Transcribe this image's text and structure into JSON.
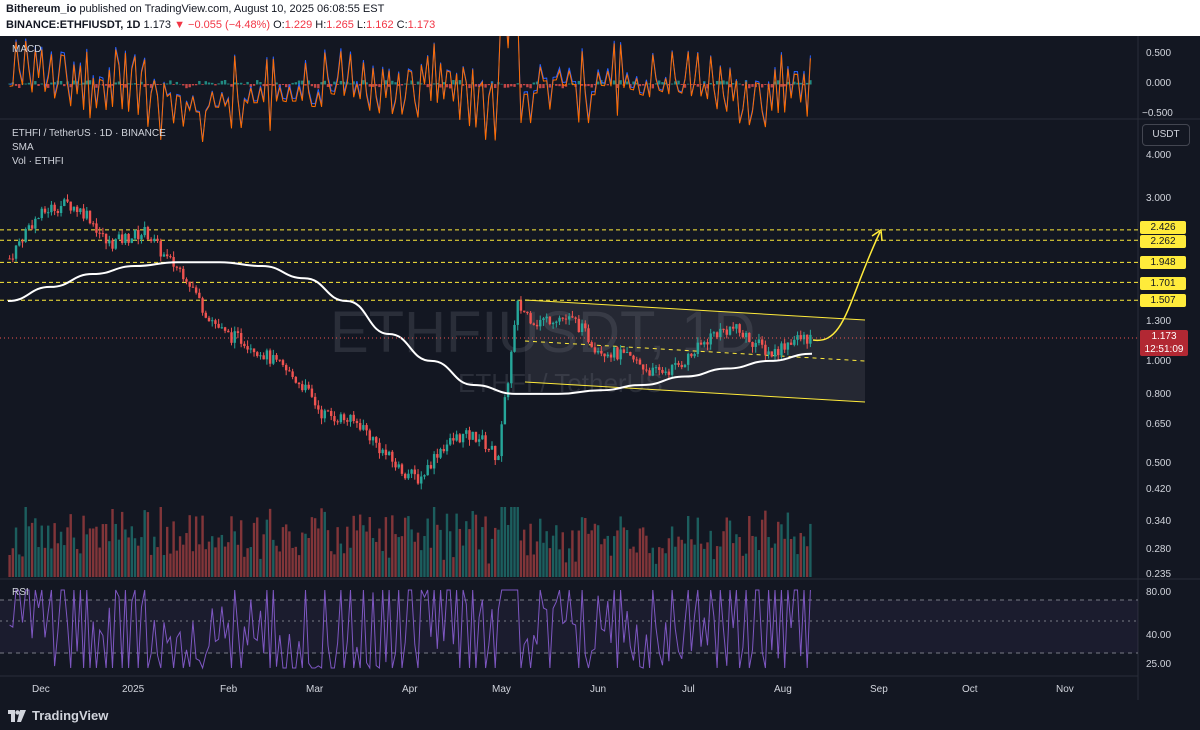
{
  "header": {
    "publisher": "Bithereum_io",
    "published_text": "published on TradingView.com, August 10, 2025 06:08:55 EST",
    "symbol_line": "BINANCE:ETHFIUSDT, 1D",
    "last": "1.173",
    "change": "▼ −0.055 (−4.48%)",
    "o_label": "O:",
    "o": "1.229",
    "h_label": "H:",
    "h": "1.265",
    "l_label": "L:",
    "l": "1.162",
    "c_label": "C:",
    "c": "1.173"
  },
  "panes": {
    "macd_label": "MACD",
    "main_title": "ETHFI / TetherUS · 1D · BINANCE",
    "sma_label": "SMA",
    "vol_label": "Vol · ETHFI",
    "rsi_label": "RSI",
    "watermark_main": "ETHFIUSDT, 1D",
    "watermark_sub": "ETHFI / TetherUS"
  },
  "axis": {
    "currency": "USDT",
    "macd_ticks": [
      "0.500",
      "0.000",
      "−0.500"
    ],
    "price_ticks": [
      "4.000",
      "3.000",
      "1.300",
      "1.000",
      "0.800",
      "0.650",
      "0.500",
      "0.420",
      "0.340",
      "0.280",
      "0.235"
    ],
    "rsi_ticks": [
      "80.00",
      "40.00",
      "25.00"
    ],
    "level_tags": [
      "2.426",
      "2.262",
      "1.948",
      "1.701",
      "1.507"
    ],
    "current_price": "1.173",
    "countdown": "12:51:09"
  },
  "x_axis": {
    "labels": [
      "Dec",
      "2025",
      "Feb",
      "Mar",
      "Apr",
      "May",
      "Jun",
      "Jul",
      "Aug",
      "Sep",
      "Oct",
      "Nov"
    ]
  },
  "footer": {
    "brand": "TradingView"
  },
  "colors": {
    "background": "#131722",
    "up": "#26a69a",
    "down": "#ef5350",
    "levels": "#ffeb3b",
    "sma": "#ffffff",
    "rsi": "#7e57c2",
    "macd": "#2962ff",
    "signal": "#ff6d00"
  },
  "chart_data": {
    "type": "line",
    "title": "ETHFI / TetherUS · 1D · BINANCE",
    "y_scale": "log",
    "ylim": [
      0.235,
      4.0
    ],
    "x_range": [
      "Dec",
      "Nov"
    ],
    "horizontal_levels": [
      2.426,
      2.262,
      1.948,
      1.701,
      1.507
    ],
    "current_price": 1.173,
    "series": [
      {
        "name": "Close",
        "values": [
          2.0,
          2.5,
          2.8,
          2.9,
          2.7,
          2.2,
          2.3,
          2.4,
          2.0,
          1.8,
          1.4,
          1.2,
          1.15,
          1.05,
          0.95,
          0.85,
          0.7,
          0.68,
          0.65,
          0.55,
          0.48,
          0.45,
          0.55,
          0.6,
          0.6,
          0.52,
          1.45,
          1.3,
          1.35,
          1.3,
          1.1,
          1.05,
          1.0,
          0.92,
          0.95,
          1.05,
          1.2,
          1.25,
          1.15,
          1.05,
          1.15,
          1.17
        ]
      },
      {
        "name": "SMA",
        "values": [
          1.5,
          1.65,
          1.8,
          1.9,
          1.95,
          1.95,
          1.9,
          1.75,
          1.5,
          1.2,
          1.0,
          0.85,
          0.8,
          0.8,
          0.82,
          0.85,
          0.9,
          0.95,
          1.0,
          1.05
        ]
      }
    ]
  }
}
